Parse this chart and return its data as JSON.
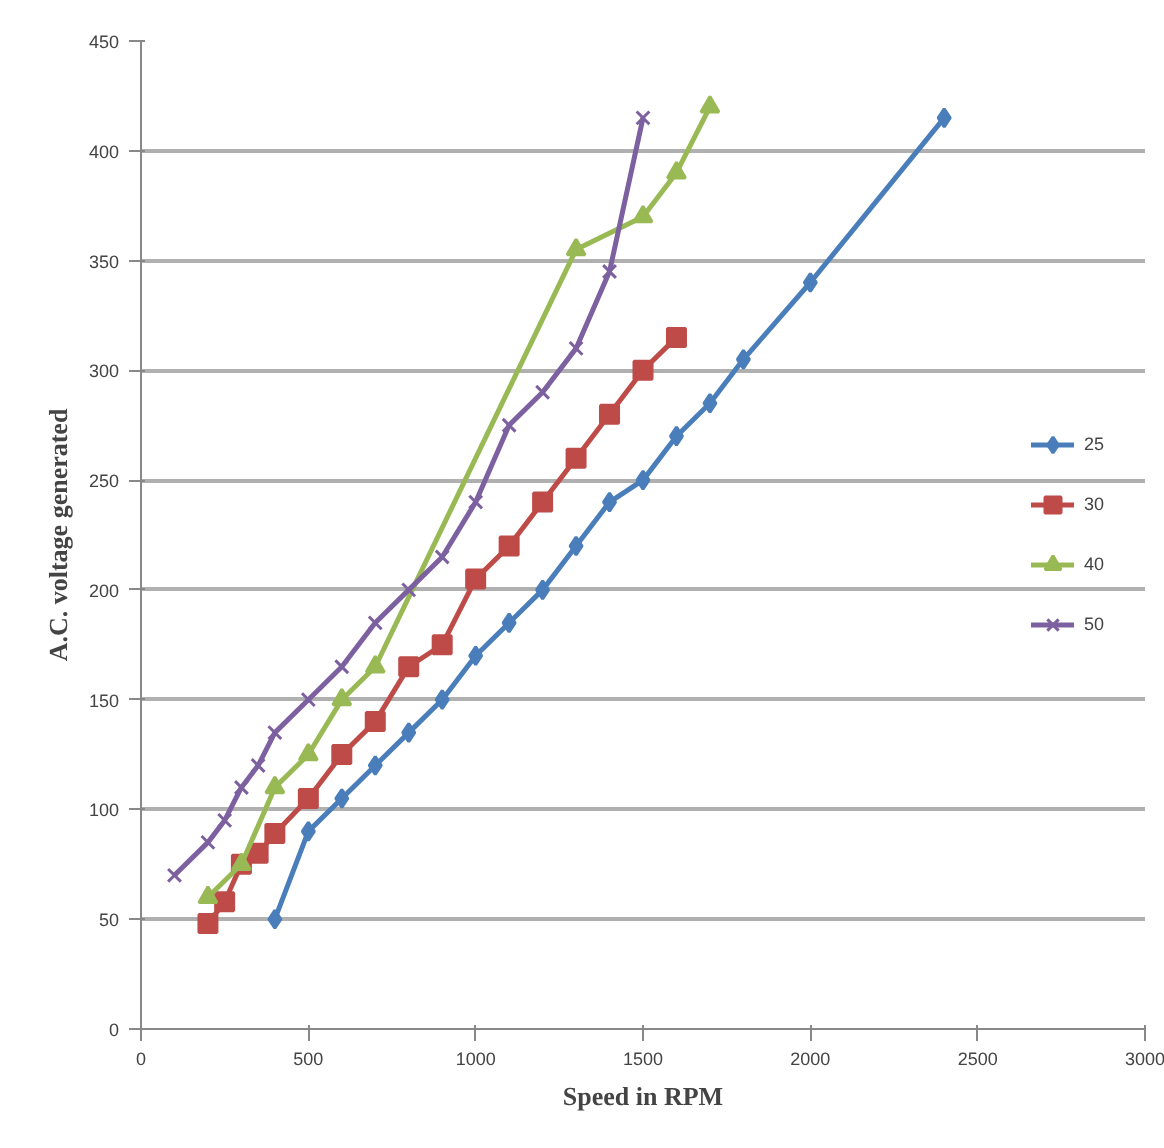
{
  "chart_data": {
    "type": "line",
    "xlabel": "Speed in RPM",
    "ylabel": "A.C. voltage generated",
    "xlim": [
      0,
      3000
    ],
    "ylim": [
      0,
      450
    ],
    "xticks": [
      0,
      500,
      1000,
      1500,
      2000,
      2500,
      3000
    ],
    "yticks": [
      0,
      50,
      100,
      150,
      200,
      250,
      300,
      350,
      400,
      450
    ],
    "grid": "y",
    "legend": "right",
    "series": [
      {
        "name": "25",
        "color": "#4a7ebb",
        "marker": "diamond",
        "x": [
          400,
          500,
          600,
          700,
          800,
          900,
          1000,
          1100,
          1200,
          1300,
          1400,
          1500,
          1600,
          1700,
          1800,
          2000,
          2400
        ],
        "values": [
          50,
          90,
          105,
          120,
          135,
          150,
          170,
          185,
          200,
          220,
          240,
          250,
          270,
          285,
          305,
          340,
          415
        ]
      },
      {
        "name": "30",
        "color": "#be4b48",
        "marker": "square",
        "x": [
          200,
          250,
          300,
          350,
          400,
          500,
          600,
          700,
          800,
          900,
          1000,
          1100,
          1200,
          1300,
          1400,
          1500,
          1600
        ],
        "values": [
          48,
          58,
          75,
          80,
          89,
          105,
          125,
          140,
          165,
          175,
          205,
          220,
          240,
          260,
          280,
          300,
          315
        ]
      },
      {
        "name": "40",
        "color": "#98b954",
        "marker": "triangle",
        "x": [
          200,
          300,
          400,
          500,
          600,
          700,
          1300,
          1500,
          1600,
          1700
        ],
        "values": [
          60,
          75,
          110,
          125,
          150,
          165,
          355,
          370,
          390,
          420
        ]
      },
      {
        "name": "50",
        "color": "#7d60a0",
        "marker": "cross",
        "x": [
          100,
          200,
          250,
          300,
          350,
          400,
          500,
          600,
          700,
          800,
          900,
          1000,
          1100,
          1200,
          1300,
          1400,
          1500
        ],
        "values": [
          70,
          85,
          95,
          110,
          120,
          135,
          150,
          165,
          185,
          200,
          215,
          240,
          275,
          290,
          310,
          345,
          415
        ]
      }
    ]
  }
}
